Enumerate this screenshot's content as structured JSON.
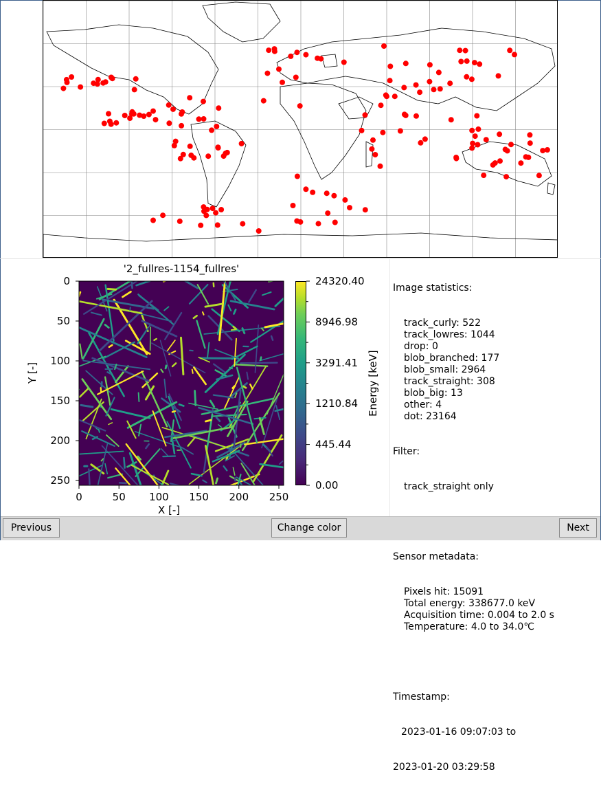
{
  "image_title": "'2_fullres-1154_fullres'",
  "axes": {
    "x_label": "X [-]",
    "y_label": "Y [-]",
    "x_ticks": [
      "0",
      "50",
      "100",
      "150",
      "200",
      "250"
    ],
    "y_ticks": [
      "0",
      "50",
      "100",
      "150",
      "200",
      "250"
    ]
  },
  "colorbar": {
    "label": "Energy [keV]",
    "ticks": [
      "24320.40",
      "8946.98",
      "3291.41",
      "1210.84",
      "445.44",
      "0.00"
    ],
    "colormap": [
      "#440154",
      "#3e4989",
      "#26828e",
      "#35b779",
      "#fde725"
    ]
  },
  "map": {
    "point_color": "#ff0000",
    "land_outline_color": "#000000"
  },
  "stats": {
    "header": "Image statistics:",
    "items": [
      "track_curly: 522",
      "track_lowres: 1044",
      "drop: 0",
      "blob_branched: 177",
      "blob_small: 2964",
      "track_straight: 308",
      "blob_big: 13",
      "other: 4",
      "dot: 23164"
    ],
    "filter_header": "Filter:",
    "filter_value": "track_straight only",
    "sensor_header": "Sensor metadata:",
    "sensor_items": [
      "Pixels hit: 15091",
      "Total energy: 338677.0 keV",
      "Acquisition time: 0.004 to 2.0 s",
      "Temperature: 4.0 to 34.0℃"
    ],
    "timestamp_header": "Timestamp:",
    "timestamp_line1": "2023-01-16 09:07:03 to",
    "timestamp_line2": "2023-01-20 03:29:58"
  },
  "buttons": {
    "previous": "Previous",
    "change_color": "Change color",
    "next": "Next"
  }
}
